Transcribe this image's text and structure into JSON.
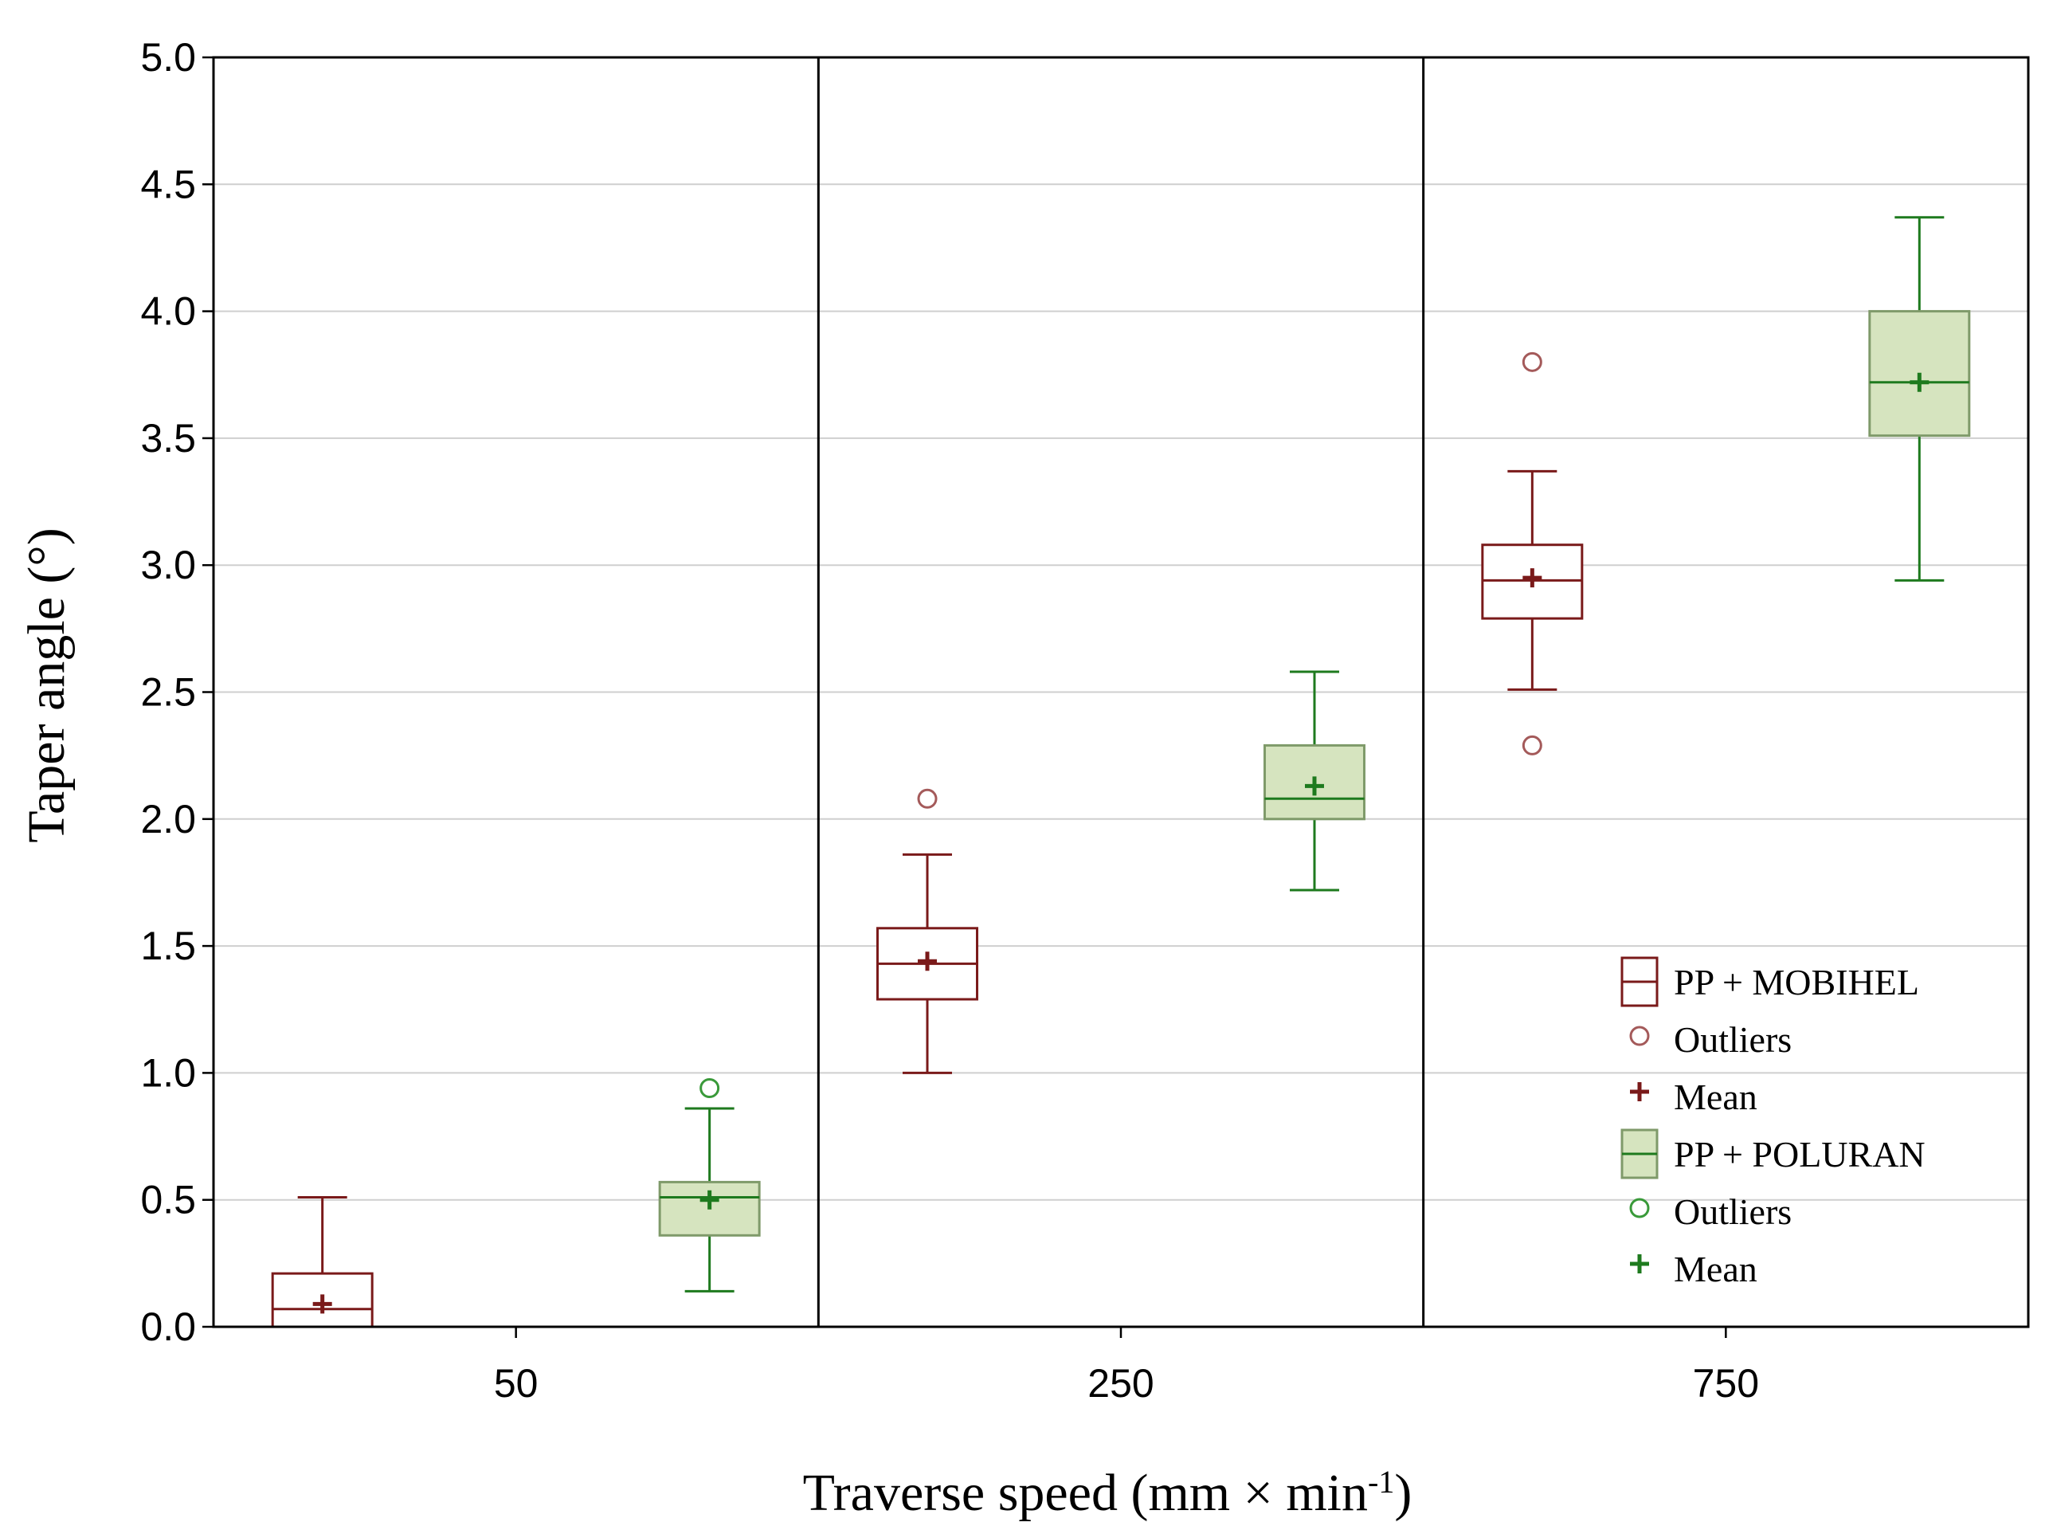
{
  "chart_data": {
    "type": "box",
    "xlabel": "Traverse speed (mm × min",
    "xlabel_superscript": "-1",
    "xlabel_close": ")",
    "ylabel": "Taper angle (°)",
    "ylim": [
      0,
      5
    ],
    "yticks": [
      "0.0",
      "0.5",
      "1.0",
      "1.5",
      "2.0",
      "2.5",
      "3.0",
      "3.5",
      "4.0",
      "4.5",
      "5.0"
    ],
    "categories": [
      "50",
      "250",
      "750"
    ],
    "grid": true,
    "legend_position": "bottom-right",
    "series": [
      {
        "name": "PP + MOBIHEL",
        "color": "#7a1a1a",
        "fill": "#ffffff",
        "outlier_color": "#a45a5a",
        "outliers_label": "Outliers",
        "mean_label": "Mean",
        "boxes": [
          {
            "category": "50",
            "whisker_low": 0.0,
            "q1": 0.0,
            "median": 0.07,
            "q3": 0.21,
            "whisker_high": 0.51,
            "mean": 0.09,
            "outliers": []
          },
          {
            "category": "250",
            "whisker_low": 1.0,
            "q1": 1.29,
            "median": 1.43,
            "q3": 1.57,
            "whisker_high": 1.86,
            "mean": 1.44,
            "outliers": [
              2.08
            ]
          },
          {
            "category": "750",
            "whisker_low": 2.51,
            "q1": 2.79,
            "median": 2.94,
            "q3": 3.08,
            "whisker_high": 3.37,
            "mean": 2.95,
            "outliers": [
              3.8,
              2.29
            ]
          }
        ]
      },
      {
        "name": "PP + POLURAN",
        "color": "#1e7a1e",
        "fill": "#d6e4bf",
        "outlier_color": "#3a9a3a",
        "outliers_label": "Outliers",
        "mean_label": "Mean",
        "boxes": [
          {
            "category": "50",
            "whisker_low": 0.14,
            "q1": 0.36,
            "median": 0.51,
            "q3": 0.57,
            "whisker_high": 0.86,
            "mean": 0.5,
            "outliers": [
              0.94
            ]
          },
          {
            "category": "250",
            "whisker_low": 1.72,
            "q1": 2.0,
            "median": 2.08,
            "q3": 2.29,
            "whisker_high": 2.58,
            "mean": 2.13,
            "outliers": []
          },
          {
            "category": "750",
            "whisker_low": 2.94,
            "q1": 3.51,
            "median": 3.72,
            "q3": 4.0,
            "whisker_high": 4.37,
            "mean": 3.72,
            "outliers": []
          }
        ]
      }
    ]
  }
}
